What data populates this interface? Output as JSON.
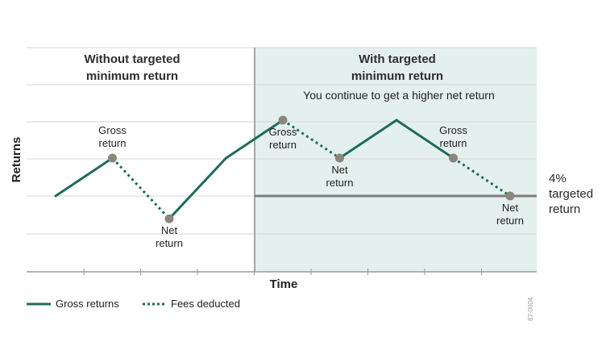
{
  "colors": {
    "line": "#1f6b5f",
    "marker": "#8c877b",
    "shade": "#e4f0ee",
    "grid": "#d6d6d6",
    "target_line": "#7d7d7d",
    "axis": "#9a9a9a"
  },
  "panels": {
    "left_title_line1": "Without targeted",
    "left_title_line2": "minimum return",
    "right_title_line1": "With targeted",
    "right_title_line2": "minimum return",
    "right_note": "You continue to get a higher net return"
  },
  "chart_data": {
    "type": "line",
    "xlabel": "Time",
    "ylabel": "Returns",
    "grid": true,
    "legend_position": "bottom-left",
    "target": {
      "value": 2,
      "label_lines": [
        "4%",
        "targeted",
        "return"
      ]
    },
    "series": [
      {
        "name": "Gross returns",
        "style": "solid",
        "points": [
          [
            1,
            2
          ],
          [
            2,
            3
          ],
          [
            3,
            1.4
          ],
          [
            4,
            3
          ],
          [
            5,
            4
          ],
          [
            6,
            3
          ],
          [
            7,
            4
          ],
          [
            8,
            3
          ],
          [
            9,
            2
          ]
        ]
      },
      {
        "name": "Fees deducted",
        "style": "dotted",
        "points": [
          [
            2,
            3
          ],
          [
            3,
            1.4
          ],
          [
            5,
            4
          ],
          [
            6,
            3
          ],
          [
            8,
            3
          ],
          [
            9,
            2
          ]
        ]
      }
    ],
    "markers": [
      [
        2,
        3
      ],
      [
        3,
        1.4
      ],
      [
        5,
        4
      ],
      [
        6,
        3
      ],
      [
        8,
        3
      ],
      [
        9,
        2
      ]
    ],
    "annotations": [
      {
        "lines": [
          "Gross",
          "return"
        ],
        "at": [
          2,
          3
        ],
        "pos": "above"
      },
      {
        "lines": [
          "Net",
          "return"
        ],
        "at": [
          3,
          1.4
        ],
        "pos": "below"
      },
      {
        "lines": [
          "Gross",
          "return"
        ],
        "at": [
          5,
          4
        ],
        "pos": "below"
      },
      {
        "lines": [
          "Net",
          "return"
        ],
        "at": [
          6,
          3
        ],
        "pos": "below"
      },
      {
        "lines": [
          "Gross",
          "return"
        ],
        "at": [
          8,
          3
        ],
        "pos": "above"
      },
      {
        "lines": [
          "Net",
          "return"
        ],
        "at": [
          9,
          2
        ],
        "pos": "below"
      }
    ]
  },
  "legend": {
    "gross_label": "Gross returns",
    "fees_label": "Fees deducted"
  },
  "figure_code": "87-0004"
}
